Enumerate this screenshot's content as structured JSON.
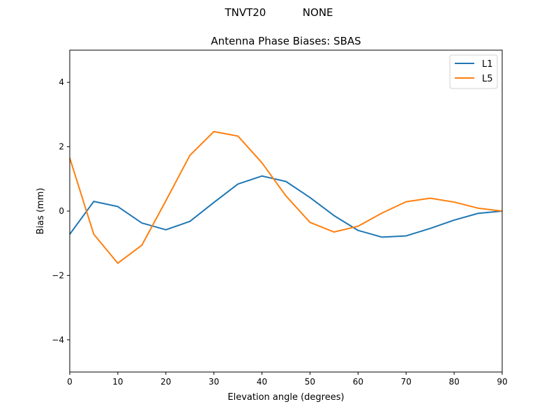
{
  "figure": {
    "suptitle": "TNVT20           NONE"
  },
  "chart_data": {
    "type": "line",
    "title": "Antenna Phase Biases: SBAS",
    "xlabel": "Elevation angle (degrees)",
    "ylabel": "Bias (mm)",
    "xlim": [
      0,
      90
    ],
    "ylim": [
      -5,
      5
    ],
    "xticks": [
      0,
      10,
      20,
      30,
      40,
      50,
      60,
      70,
      80,
      90
    ],
    "yticks": [
      -4,
      -2,
      0,
      2,
      4
    ],
    "ytick_labels": [
      "−4",
      "−2",
      "0",
      "2",
      "4"
    ],
    "grid": false,
    "legend_position": "top-right",
    "x": [
      0,
      5,
      10,
      15,
      20,
      25,
      30,
      35,
      40,
      45,
      50,
      55,
      60,
      65,
      70,
      75,
      80,
      85,
      90
    ],
    "series": [
      {
        "name": "L1",
        "color": "#1f77b4",
        "values": [
          -0.72,
          0.3,
          0.14,
          -0.37,
          -0.58,
          -0.32,
          0.27,
          0.84,
          1.09,
          0.92,
          0.42,
          -0.14,
          -0.6,
          -0.81,
          -0.77,
          -0.54,
          -0.28,
          -0.07,
          0.0
        ]
      },
      {
        "name": "L5",
        "color": "#ff7f0e",
        "values": [
          1.65,
          -0.72,
          -1.62,
          -1.06,
          0.32,
          1.73,
          2.47,
          2.33,
          1.5,
          0.47,
          -0.35,
          -0.65,
          -0.47,
          -0.06,
          0.29,
          0.4,
          0.28,
          0.09,
          0.0
        ]
      }
    ]
  }
}
